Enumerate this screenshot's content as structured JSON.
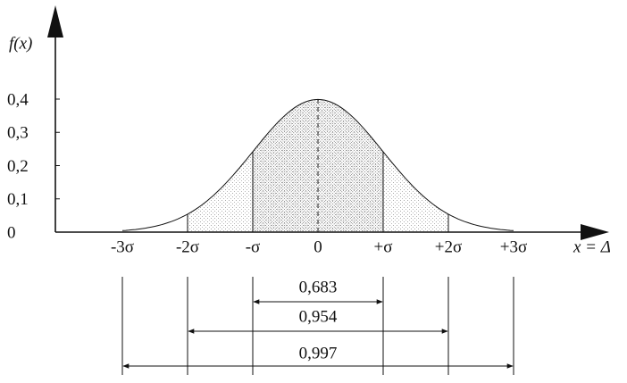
{
  "axes": {
    "y_label": "f(x)",
    "x_label": "x = Δ",
    "y_ticks": [
      "0",
      "0,1",
      "0,2",
      "0,3",
      "0,4"
    ],
    "x_ticks": [
      "-3σ",
      "-2σ",
      "-σ",
      "0",
      "+σ",
      "+2σ",
      "+3σ"
    ]
  },
  "intervals": [
    "0,683",
    "0,954",
    "0,997"
  ]
}
